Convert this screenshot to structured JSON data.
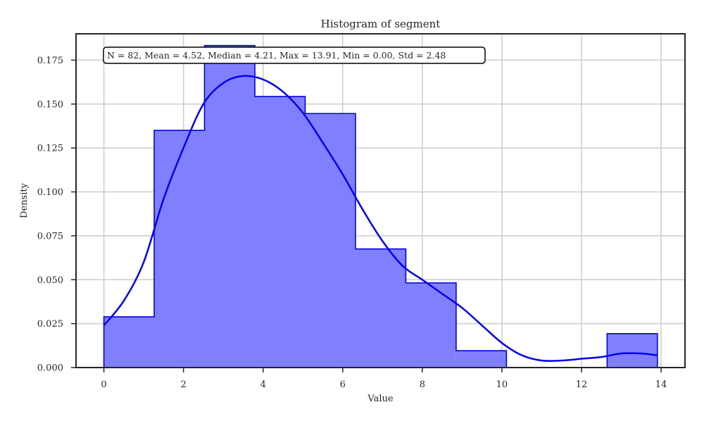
{
  "chart_data": {
    "type": "histogram",
    "title": "Histogram of segment",
    "xlabel": "Value",
    "ylabel": "Density",
    "xlim": [
      -0.7,
      14.6
    ],
    "ylim": [
      0,
      0.19
    ],
    "xticks": [
      0,
      2,
      4,
      6,
      8,
      10,
      12,
      14
    ],
    "yticks": [
      0.0,
      0.025,
      0.05,
      0.075,
      0.1,
      0.125,
      0.15,
      0.175
    ],
    "ytick_labels": [
      "0.000",
      "0.025",
      "0.050",
      "0.075",
      "0.100",
      "0.125",
      "0.150",
      "0.175"
    ],
    "grid": true,
    "bin_edges": [
      0.0,
      1.264,
      2.528,
      3.793,
      5.057,
      6.321,
      7.586,
      8.85,
      10.114,
      11.378,
      12.643,
      13.907
    ],
    "density": [
      0.0289,
      0.135,
      0.1833,
      0.1543,
      0.1446,
      0.0675,
      0.0482,
      0.0096,
      0.0,
      0.0,
      0.0193
    ],
    "bar_color": "#8080ff",
    "edge_color": "#0000e0",
    "kde": {
      "color": "#0000ee",
      "x": [
        0.0,
        0.5,
        1.0,
        1.5,
        2.0,
        2.5,
        3.0,
        3.5,
        4.0,
        4.5,
        5.0,
        5.5,
        6.0,
        6.5,
        7.0,
        7.5,
        8.0,
        8.5,
        9.0,
        9.5,
        10.0,
        10.5,
        11.0,
        11.5,
        12.0,
        12.5,
        13.0,
        13.5,
        13.9
      ],
      "y": [
        0.024,
        0.038,
        0.06,
        0.096,
        0.125,
        0.15,
        0.162,
        0.166,
        0.164,
        0.157,
        0.145,
        0.128,
        0.11,
        0.09,
        0.072,
        0.058,
        0.05,
        0.042,
        0.034,
        0.024,
        0.014,
        0.007,
        0.004,
        0.004,
        0.005,
        0.006,
        0.008,
        0.008,
        0.007
      ]
    },
    "stats_box": "N = 82, Mean = 4.52, Median = 4.21, Max = 13.91, Min = 0.00, Std = 2.48"
  }
}
